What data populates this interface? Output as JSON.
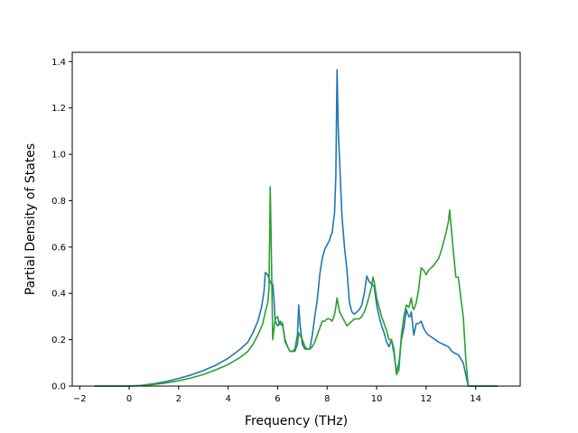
{
  "chart_data": {
    "type": "line",
    "title": "",
    "xlabel": "Frequency (THz)",
    "ylabel": "Partial Density of States",
    "xlim": [
      -2.3,
      15.8
    ],
    "ylim": [
      0.0,
      1.44
    ],
    "xticks": [
      -2,
      0,
      2,
      4,
      6,
      8,
      10,
      12,
      14
    ],
    "xtick_labels": [
      "−2",
      "0",
      "2",
      "4",
      "6",
      "8",
      "10",
      "12",
      "14"
    ],
    "yticks": [
      0.0,
      0.2,
      0.4,
      0.6,
      0.8,
      1.0,
      1.2,
      1.4
    ],
    "ytick_labels": [
      "0.0",
      "0.2",
      "0.4",
      "0.6",
      "0.8",
      "1.0",
      "1.2",
      "1.4"
    ],
    "grid": false,
    "legend": false,
    "series": [
      {
        "color": "#1f77b4",
        "points": [
          [
            -1.4,
            0
          ],
          [
            0.0,
            0.0
          ],
          [
            0.5,
            0.003
          ],
          [
            1.0,
            0.01
          ],
          [
            1.5,
            0.02
          ],
          [
            2.0,
            0.033
          ],
          [
            2.5,
            0.048
          ],
          [
            3.0,
            0.067
          ],
          [
            3.5,
            0.09
          ],
          [
            4.0,
            0.12
          ],
          [
            4.5,
            0.16
          ],
          [
            4.8,
            0.19
          ],
          [
            5.0,
            0.23
          ],
          [
            5.2,
            0.28
          ],
          [
            5.35,
            0.34
          ],
          [
            5.45,
            0.41
          ],
          [
            5.5,
            0.49
          ],
          [
            5.6,
            0.48
          ],
          [
            5.7,
            0.45
          ],
          [
            5.75,
            0.44
          ],
          [
            5.8,
            0.44
          ],
          [
            5.85,
            0.38
          ],
          [
            5.9,
            0.28
          ],
          [
            6.0,
            0.26
          ],
          [
            6.1,
            0.27
          ],
          [
            6.2,
            0.26
          ],
          [
            6.3,
            0.2
          ],
          [
            6.4,
            0.17
          ],
          [
            6.5,
            0.15
          ],
          [
            6.6,
            0.15
          ],
          [
            6.7,
            0.16
          ],
          [
            6.8,
            0.22
          ],
          [
            6.85,
            0.35
          ],
          [
            6.9,
            0.27
          ],
          [
            7.0,
            0.18
          ],
          [
            7.1,
            0.16
          ],
          [
            7.2,
            0.16
          ],
          [
            7.3,
            0.16
          ],
          [
            7.4,
            0.22
          ],
          [
            7.5,
            0.3
          ],
          [
            7.6,
            0.37
          ],
          [
            7.7,
            0.48
          ],
          [
            7.8,
            0.55
          ],
          [
            7.9,
            0.59
          ],
          [
            8.0,
            0.61
          ],
          [
            8.1,
            0.63
          ],
          [
            8.15,
            0.65
          ],
          [
            8.2,
            0.66
          ],
          [
            8.3,
            0.75
          ],
          [
            8.35,
            0.9
          ],
          [
            8.4,
            1.365
          ],
          [
            8.45,
            1.1
          ],
          [
            8.5,
            0.98
          ],
          [
            8.55,
            0.85
          ],
          [
            8.6,
            0.73
          ],
          [
            8.7,
            0.6
          ],
          [
            8.8,
            0.5
          ],
          [
            8.9,
            0.36
          ],
          [
            9.0,
            0.32
          ],
          [
            9.1,
            0.31
          ],
          [
            9.2,
            0.32
          ],
          [
            9.3,
            0.33
          ],
          [
            9.4,
            0.35
          ],
          [
            9.5,
            0.4
          ],
          [
            9.6,
            0.475
          ],
          [
            9.7,
            0.45
          ],
          [
            9.8,
            0.44
          ],
          [
            9.9,
            0.43
          ],
          [
            10.0,
            0.35
          ],
          [
            10.1,
            0.3
          ],
          [
            10.2,
            0.26
          ],
          [
            10.3,
            0.23
          ],
          [
            10.4,
            0.19
          ],
          [
            10.5,
            0.17
          ],
          [
            10.6,
            0.2
          ],
          [
            10.7,
            0.14
          ],
          [
            10.8,
            0.06
          ],
          [
            10.9,
            0.1
          ],
          [
            11.0,
            0.2
          ],
          [
            11.1,
            0.25
          ],
          [
            11.2,
            0.33
          ],
          [
            11.3,
            0.3
          ],
          [
            11.35,
            0.3
          ],
          [
            11.4,
            0.32
          ],
          [
            11.5,
            0.22
          ],
          [
            11.6,
            0.27
          ],
          [
            11.7,
            0.27
          ],
          [
            11.8,
            0.28
          ],
          [
            11.9,
            0.25
          ],
          [
            12.0,
            0.23
          ],
          [
            12.1,
            0.22
          ],
          [
            12.3,
            0.205
          ],
          [
            12.5,
            0.19
          ],
          [
            12.7,
            0.18
          ],
          [
            12.9,
            0.17
          ],
          [
            13.0,
            0.155
          ],
          [
            13.1,
            0.145
          ],
          [
            13.3,
            0.135
          ],
          [
            13.5,
            0.1
          ],
          [
            13.6,
            0.05
          ],
          [
            13.7,
            0.0
          ],
          [
            14.9,
            0
          ]
        ]
      },
      {
        "color": "#2ca02c",
        "points": [
          [
            -1.4,
            0
          ],
          [
            0.0,
            0.0
          ],
          [
            0.5,
            0.002
          ],
          [
            1.0,
            0.007
          ],
          [
            1.5,
            0.014
          ],
          [
            2.0,
            0.023
          ],
          [
            2.5,
            0.035
          ],
          [
            3.0,
            0.05
          ],
          [
            3.5,
            0.07
          ],
          [
            4.0,
            0.093
          ],
          [
            4.5,
            0.125
          ],
          [
            4.8,
            0.15
          ],
          [
            5.0,
            0.18
          ],
          [
            5.2,
            0.22
          ],
          [
            5.4,
            0.27
          ],
          [
            5.5,
            0.32
          ],
          [
            5.6,
            0.36
          ],
          [
            5.65,
            0.42
          ],
          [
            5.7,
            0.86
          ],
          [
            5.75,
            0.55
          ],
          [
            5.8,
            0.2
          ],
          [
            5.9,
            0.29
          ],
          [
            6.0,
            0.3
          ],
          [
            6.05,
            0.27
          ],
          [
            6.1,
            0.28
          ],
          [
            6.2,
            0.27
          ],
          [
            6.3,
            0.19
          ],
          [
            6.4,
            0.17
          ],
          [
            6.5,
            0.15
          ],
          [
            6.6,
            0.15
          ],
          [
            6.7,
            0.15
          ],
          [
            6.8,
            0.18
          ],
          [
            6.85,
            0.23
          ],
          [
            6.9,
            0.22
          ],
          [
            7.0,
            0.2
          ],
          [
            7.1,
            0.17
          ],
          [
            7.2,
            0.16
          ],
          [
            7.3,
            0.16
          ],
          [
            7.4,
            0.17
          ],
          [
            7.5,
            0.19
          ],
          [
            7.6,
            0.22
          ],
          [
            7.7,
            0.25
          ],
          [
            7.8,
            0.28
          ],
          [
            7.9,
            0.28
          ],
          [
            8.0,
            0.29
          ],
          [
            8.1,
            0.29
          ],
          [
            8.2,
            0.28
          ],
          [
            8.3,
            0.31
          ],
          [
            8.35,
            0.34
          ],
          [
            8.4,
            0.38
          ],
          [
            8.5,
            0.32
          ],
          [
            8.6,
            0.3
          ],
          [
            8.7,
            0.28
          ],
          [
            8.8,
            0.26
          ],
          [
            8.9,
            0.27
          ],
          [
            9.0,
            0.28
          ],
          [
            9.1,
            0.29
          ],
          [
            9.2,
            0.29
          ],
          [
            9.3,
            0.29
          ],
          [
            9.4,
            0.3
          ],
          [
            9.5,
            0.32
          ],
          [
            9.6,
            0.35
          ],
          [
            9.7,
            0.39
          ],
          [
            9.8,
            0.43
          ],
          [
            9.85,
            0.47
          ],
          [
            9.9,
            0.45
          ],
          [
            10.0,
            0.38
          ],
          [
            10.1,
            0.34
          ],
          [
            10.2,
            0.3
          ],
          [
            10.3,
            0.27
          ],
          [
            10.4,
            0.24
          ],
          [
            10.5,
            0.2
          ],
          [
            10.6,
            0.2
          ],
          [
            10.7,
            0.16
          ],
          [
            10.8,
            0.05
          ],
          [
            10.9,
            0.07
          ],
          [
            11.0,
            0.22
          ],
          [
            11.1,
            0.3
          ],
          [
            11.2,
            0.35
          ],
          [
            11.3,
            0.34
          ],
          [
            11.4,
            0.38
          ],
          [
            11.45,
            0.34
          ],
          [
            11.5,
            0.33
          ],
          [
            11.6,
            0.36
          ],
          [
            11.7,
            0.42
          ],
          [
            11.8,
            0.51
          ],
          [
            11.9,
            0.5
          ],
          [
            12.0,
            0.48
          ],
          [
            12.1,
            0.5
          ],
          [
            12.2,
            0.51
          ],
          [
            12.3,
            0.52
          ],
          [
            12.5,
            0.55
          ],
          [
            12.6,
            0.58
          ],
          [
            12.7,
            0.62
          ],
          [
            12.8,
            0.66
          ],
          [
            12.9,
            0.71
          ],
          [
            12.95,
            0.76
          ],
          [
            13.0,
            0.7
          ],
          [
            13.1,
            0.58
          ],
          [
            13.2,
            0.47
          ],
          [
            13.3,
            0.47
          ],
          [
            13.4,
            0.38
          ],
          [
            13.5,
            0.3
          ],
          [
            13.6,
            0.12
          ],
          [
            13.7,
            0.0
          ],
          [
            14.9,
            0
          ]
        ]
      }
    ]
  }
}
